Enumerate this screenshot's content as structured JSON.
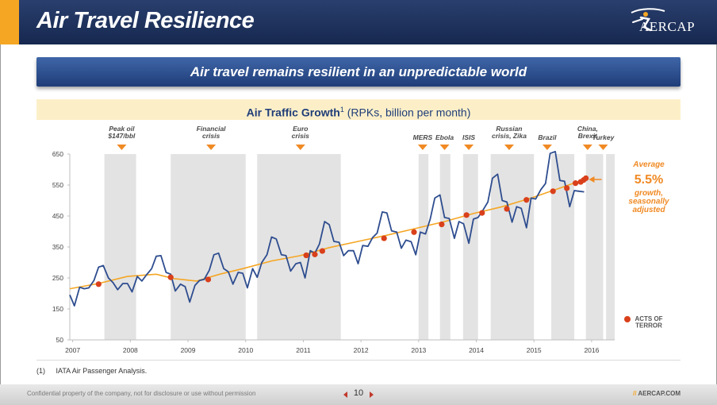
{
  "header": {
    "title": "Air Travel Resilience",
    "logo_text": "AERCAP",
    "accent_color": "#f5a623",
    "bar_color": "#1f3461"
  },
  "banner": {
    "text": "Air travel remains resilient in an unpredictable world"
  },
  "chart_header": {
    "bold": "Air Traffic Growth",
    "sup": "1",
    "rest": " (RPKs, billion per month)"
  },
  "footnote": {
    "num": "(1)",
    "text": "IATA Air Passenger Analysis."
  },
  "footer": {
    "confidential": "Confidential property of the company, not for disclosure or use without permission",
    "page": "10",
    "url_slash": "//",
    "url": "AERCAP.COM"
  },
  "chart_data": {
    "type": "line",
    "title": "",
    "xlabel": "",
    "ylabel": "",
    "ylim": [
      50,
      650
    ],
    "xlim": [
      2007.0,
      2016.45
    ],
    "yticks": [
      50,
      150,
      250,
      350,
      450,
      550,
      650
    ],
    "xticks": [
      {
        "label": "2007",
        "x": 2007.05
      },
      {
        "label": "2008",
        "x": 2008.05
      },
      {
        "label": "2009",
        "x": 2009.05
      },
      {
        "label": "2010",
        "x": 2010.05
      },
      {
        "label": "2011",
        "x": 2011.05
      },
      {
        "label": "2012",
        "x": 2012.05
      },
      {
        "label": "2013",
        "x": 2013.05
      },
      {
        "label": "2014",
        "x": 2014.05
      },
      {
        "label": "2015",
        "x": 2015.05
      },
      {
        "label": "2016",
        "x": 2016.05
      }
    ],
    "colors": {
      "monthly": "#2e4d8f",
      "trend": "#f5a623",
      "events": "#d9401b",
      "annotation": "#f08a24",
      "shade": "#e3e3e3"
    },
    "shaded_periods": [
      [
        2007.6,
        2008.15
      ],
      [
        2008.75,
        2010.05
      ],
      [
        2010.25,
        2011.7
      ],
      [
        2013.05,
        2013.22
      ],
      [
        2013.42,
        2013.6
      ],
      [
        2013.82,
        2014.08
      ],
      [
        2014.3,
        2015.05
      ],
      [
        2015.35,
        2015.75
      ],
      [
        2015.95,
        2016.25
      ],
      [
        2016.3,
        2016.45
      ]
    ],
    "event_labels": [
      {
        "text": "Peak oil\n$147/bbl",
        "x": 2007.9
      },
      {
        "text": "Financial\ncrisis",
        "x": 2009.45
      },
      {
        "text": "Euro\ncrisis",
        "x": 2011.0
      },
      {
        "text": "MERS",
        "x": 2013.12
      },
      {
        "text": "Ebola",
        "x": 2013.5
      },
      {
        "text": "ISIS",
        "x": 2013.92
      },
      {
        "text": "Russian\ncrisis, Zika",
        "x": 2014.62
      },
      {
        "text": "Brazil",
        "x": 2015.28
      },
      {
        "text": "China,\nBrexit",
        "x": 2015.98
      },
      {
        "text": "Turkey",
        "x": 2016.25
      }
    ],
    "series": [
      {
        "values": [
          [
            2007.0,
            195
          ],
          [
            2007.08,
            160
          ],
          [
            2007.17,
            220
          ],
          [
            2007.25,
            215
          ],
          [
            2007.33,
            218
          ],
          [
            2007.42,
            242
          ],
          [
            2007.5,
            285
          ],
          [
            2007.58,
            290
          ],
          [
            2007.67,
            250
          ],
          [
            2007.75,
            235
          ],
          [
            2007.83,
            212
          ],
          [
            2007.92,
            232
          ],
          [
            2008.0,
            232
          ],
          [
            2008.08,
            205
          ],
          [
            2008.17,
            255
          ],
          [
            2008.25,
            240
          ],
          [
            2008.33,
            260
          ],
          [
            2008.42,
            280
          ],
          [
            2008.5,
            320
          ],
          [
            2008.58,
            322
          ],
          [
            2008.67,
            268
          ],
          [
            2008.75,
            262
          ],
          [
            2008.83,
            208
          ],
          [
            2008.92,
            230
          ],
          [
            2009.0,
            222
          ],
          [
            2009.08,
            172
          ],
          [
            2009.17,
            226
          ],
          [
            2009.25,
            242
          ],
          [
            2009.33,
            245
          ],
          [
            2009.42,
            275
          ],
          [
            2009.5,
            325
          ],
          [
            2009.58,
            330
          ],
          [
            2009.67,
            280
          ],
          [
            2009.75,
            270
          ],
          [
            2009.83,
            230
          ],
          [
            2009.92,
            268
          ],
          [
            2010.0,
            265
          ],
          [
            2010.08,
            218
          ],
          [
            2010.17,
            280
          ],
          [
            2010.25,
            252
          ],
          [
            2010.33,
            300
          ],
          [
            2010.42,
            325
          ],
          [
            2010.5,
            382
          ],
          [
            2010.58,
            376
          ],
          [
            2010.67,
            325
          ],
          [
            2010.75,
            322
          ],
          [
            2010.83,
            272
          ],
          [
            2010.92,
            296
          ],
          [
            2011.0,
            300
          ],
          [
            2011.08,
            250
          ],
          [
            2011.17,
            338
          ],
          [
            2011.25,
            330
          ],
          [
            2011.33,
            360
          ],
          [
            2011.42,
            432
          ],
          [
            2011.5,
            422
          ],
          [
            2011.58,
            368
          ],
          [
            2011.67,
            365
          ],
          [
            2011.75,
            322
          ],
          [
            2011.83,
            338
          ],
          [
            2011.92,
            338
          ],
          [
            2012.0,
            296
          ],
          [
            2012.08,
            355
          ],
          [
            2012.17,
            352
          ],
          [
            2012.25,
            380
          ],
          [
            2012.33,
            395
          ],
          [
            2012.42,
            463
          ],
          [
            2012.5,
            460
          ],
          [
            2012.58,
            402
          ],
          [
            2012.67,
            398
          ],
          [
            2012.75,
            346
          ],
          [
            2012.83,
            372
          ],
          [
            2012.92,
            367
          ],
          [
            2013.0,
            325
          ],
          [
            2013.08,
            398
          ],
          [
            2013.17,
            392
          ],
          [
            2013.25,
            440
          ],
          [
            2013.33,
            508
          ],
          [
            2013.42,
            518
          ],
          [
            2013.5,
            445
          ],
          [
            2013.58,
            442
          ],
          [
            2013.67,
            378
          ],
          [
            2013.75,
            432
          ],
          [
            2013.83,
            425
          ],
          [
            2013.92,
            362
          ],
          [
            2014.0,
            440
          ],
          [
            2014.08,
            445
          ],
          [
            2014.17,
            470
          ],
          [
            2014.25,
            495
          ],
          [
            2014.33,
            572
          ],
          [
            2014.42,
            585
          ],
          [
            2014.5,
            500
          ],
          [
            2014.58,
            495
          ],
          [
            2014.67,
            430
          ],
          [
            2014.75,
            480
          ],
          [
            2014.83,
            475
          ],
          [
            2014.92,
            412
          ],
          [
            2015.0,
            508
          ],
          [
            2015.08,
            505
          ],
          [
            2015.17,
            535
          ],
          [
            2015.25,
            555
          ],
          [
            2015.33,
            652
          ],
          [
            2015.42,
            658
          ],
          [
            2015.5,
            565
          ],
          [
            2015.58,
            562
          ],
          [
            2015.67,
            480
          ],
          [
            2015.75,
            532
          ],
          [
            2015.83,
            530
          ],
          [
            2015.92,
            528
          ]
        ]
      },
      {
        "values": [
          [
            2007.0,
            215
          ],
          [
            2007.5,
            232
          ],
          [
            2008.0,
            255
          ],
          [
            2008.5,
            262
          ],
          [
            2008.8,
            248
          ],
          [
            2009.2,
            240
          ],
          [
            2009.6,
            262
          ],
          [
            2010.0,
            280
          ],
          [
            2010.5,
            305
          ],
          [
            2011.0,
            322
          ],
          [
            2011.5,
            348
          ],
          [
            2012.0,
            368
          ],
          [
            2012.5,
            388
          ],
          [
            2013.0,
            410
          ],
          [
            2013.5,
            432
          ],
          [
            2014.0,
            458
          ],
          [
            2014.5,
            480
          ],
          [
            2015.0,
            508
          ],
          [
            2015.5,
            540
          ],
          [
            2015.92,
            568
          ]
        ]
      }
    ],
    "acts_of_terror": {
      "label": "ACTS OF\nTERROR",
      "points": [
        [
          2007.5,
          230
        ],
        [
          2008.75,
          252
        ],
        [
          2009.4,
          245
        ],
        [
          2011.1,
          323
        ],
        [
          2011.25,
          326
        ],
        [
          2011.38,
          337
        ],
        [
          2012.45,
          378
        ],
        [
          2012.97,
          398
        ],
        [
          2013.45,
          423
        ],
        [
          2013.88,
          453
        ],
        [
          2014.15,
          460
        ],
        [
          2014.58,
          473
        ],
        [
          2014.92,
          502
        ],
        [
          2015.38,
          530
        ],
        [
          2015.62,
          540
        ],
        [
          2015.77,
          556
        ],
        [
          2015.86,
          560
        ],
        [
          2015.91,
          566
        ],
        [
          2015.95,
          572
        ]
      ]
    },
    "annotation": {
      "line1": "Average",
      "value": "5.5%",
      "line2": "growth,\nseasonally\nadjusted"
    }
  }
}
